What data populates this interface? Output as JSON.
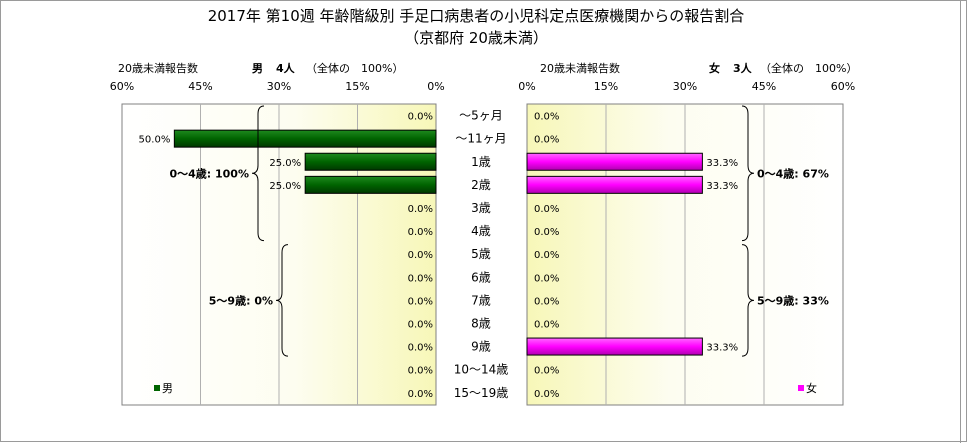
{
  "title_line1": "2017年 第10週 年齢階級別 手足口病患者の小児科定点医療機関からの報告割合",
  "title_line2": "（京都府 20歳未満）",
  "chart_data": {
    "type": "bar",
    "orientation": "horizontal",
    "categories": [
      "～5ヶ月",
      "～11ヶ月",
      "1歳",
      "2歳",
      "3歳",
      "4歳",
      "5歳",
      "6歳",
      "7歳",
      "8歳",
      "9歳",
      "10～14歳",
      "15～19歳"
    ],
    "xlim": [
      0,
      60
    ],
    "xticks": [
      0,
      15,
      30,
      45,
      60
    ],
    "tick_suffix": "%",
    "grid": true,
    "panels": [
      {
        "side": "left",
        "header_label": "20歳未満報告数",
        "header_sex": "男",
        "header_count": "4人",
        "header_note": "（全体の　100%）",
        "series": [
          {
            "name": "男",
            "color": "#006400",
            "values": [
              0.0,
              50.0,
              25.0,
              25.0,
              0.0,
              0.0,
              0.0,
              0.0,
              0.0,
              0.0,
              0.0,
              0.0,
              0.0
            ]
          }
        ],
        "legend": "男",
        "groups": [
          {
            "label": "0～4歳: 100%",
            "from": 0,
            "to": 5
          },
          {
            "label": "5～9歳: 0%",
            "from": 6,
            "to": 10
          }
        ]
      },
      {
        "side": "right",
        "header_label": "20歳未満報告数",
        "header_sex": "女",
        "header_count": "3人",
        "header_note": "（全体の　100%）",
        "series": [
          {
            "name": "女",
            "color": "#ff00ff",
            "values": [
              0.0,
              0.0,
              33.3,
              33.3,
              0.0,
              0.0,
              0.0,
              0.0,
              0.0,
              0.0,
              33.3,
              0.0,
              0.0
            ]
          }
        ],
        "legend": "女",
        "groups": [
          {
            "label": "0～4歳: 67%",
            "from": 0,
            "to": 5
          },
          {
            "label": "5～9歳: 33%",
            "from": 6,
            "to": 10
          }
        ]
      }
    ]
  }
}
